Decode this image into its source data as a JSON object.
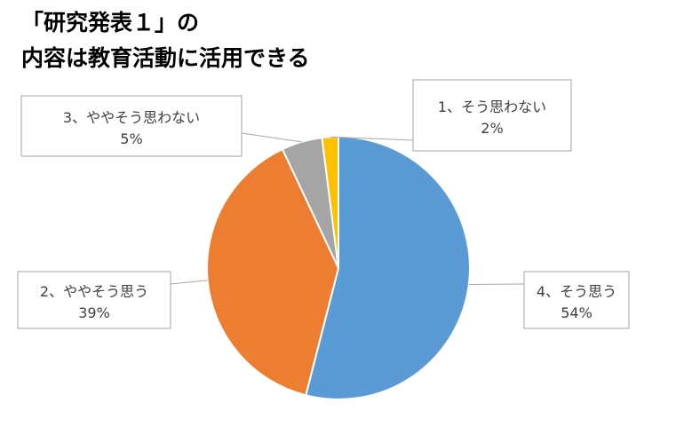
{
  "chart_data": {
    "type": "pie",
    "title": [
      "「研究発表１」の",
      "内容は教育活動に活用できる"
    ],
    "categories": [
      "4、そう思う",
      "2、ややそう思う",
      "3、ややそう思わない",
      "1、そう思わない"
    ],
    "values": [
      54,
      39,
      5,
      2
    ],
    "value_labels": [
      "54%",
      "39%",
      "5%",
      "2%"
    ],
    "colors": [
      "#5B9BD5",
      "#ED7D31",
      "#A5A5A5",
      "#FFC000"
    ],
    "unit": "%",
    "legend": "none",
    "start_angle": "12 o'clock",
    "direction": "clockwise"
  }
}
